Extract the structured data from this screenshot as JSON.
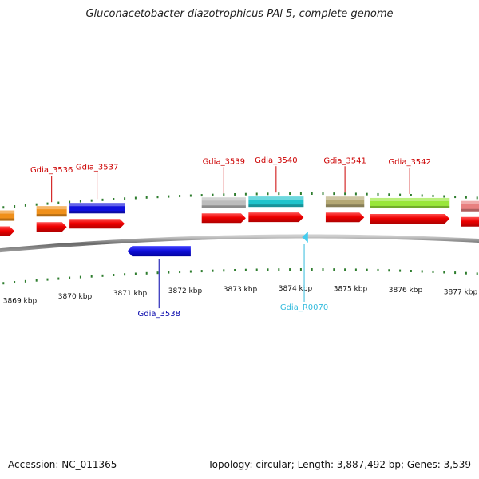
{
  "title": "Gluconacetobacter diazotrophicus PAl 5, complete genome",
  "footer": {
    "accession": "Accession: NC_011365",
    "summary": "Topology: circular; Length: 3,887,492 bp; Genes: 3,539"
  },
  "colors": {
    "backbone": "#6e6e6e",
    "tick": "#2e7d2e",
    "label_forward": "#cc0000",
    "label_reverse": "#0000aa",
    "label_rna": "#33bbdd"
  },
  "axis": {
    "unit": "kbp",
    "ticks": [
      {
        "kbp": 3869,
        "label": "3869 kbp"
      },
      {
        "kbp": 3870,
        "label": "3870 kbp"
      },
      {
        "kbp": 3871,
        "label": "3871 kbp"
      },
      {
        "kbp": 3872,
        "label": "3872 kbp"
      },
      {
        "kbp": 3873,
        "label": "3873 kbp"
      },
      {
        "kbp": 3874,
        "label": "3874 kbp"
      },
      {
        "kbp": 3875,
        "label": "3875 kbp"
      },
      {
        "kbp": 3876,
        "label": "3876 kbp"
      },
      {
        "kbp": 3877,
        "label": "3877 kbp"
      }
    ]
  },
  "features": [
    {
      "id": "f1",
      "strand": "+",
      "start": 3868.4,
      "end": 3868.9,
      "cog": "#f0901a",
      "label": ""
    },
    {
      "id": "f2",
      "strand": "+",
      "start": 3869.3,
      "end": 3869.85,
      "cog": "#f0901a",
      "label": "Gdia_3536"
    },
    {
      "id": "f3",
      "strand": "+",
      "start": 3869.9,
      "end": 3870.9,
      "cog": "#1010dd",
      "label": "Gdia_3537"
    },
    {
      "id": "f4",
      "strand": "-",
      "start": 3870.95,
      "end": 3872.1,
      "cog": "",
      "label": "Gdia_3538"
    },
    {
      "id": "f5",
      "strand": "+",
      "start": 3872.3,
      "end": 3873.1,
      "cog": "#bdbdbd",
      "label": "Gdia_3539"
    },
    {
      "id": "f6",
      "strand": "+",
      "start": 3873.15,
      "end": 3874.15,
      "cog": "#20c4cc",
      "label": "Gdia_3540"
    },
    {
      "id": "f7",
      "strand": "-",
      "start": 3874.12,
      "end": 3874.2,
      "cog": "",
      "label": "Gdia_R0070",
      "rna": true
    },
    {
      "id": "f8",
      "strand": "+",
      "start": 3874.55,
      "end": 3875.25,
      "cog": "#b4a874",
      "label": "Gdia_3541"
    },
    {
      "id": "f9",
      "strand": "+",
      "start": 3875.35,
      "end": 3876.8,
      "cog": "#99e63a",
      "label": "Gdia_3542"
    },
    {
      "id": "f10",
      "strand": "+",
      "start": 3877.0,
      "end": 3877.8,
      "cog": "#e88080",
      "label": ""
    }
  ]
}
